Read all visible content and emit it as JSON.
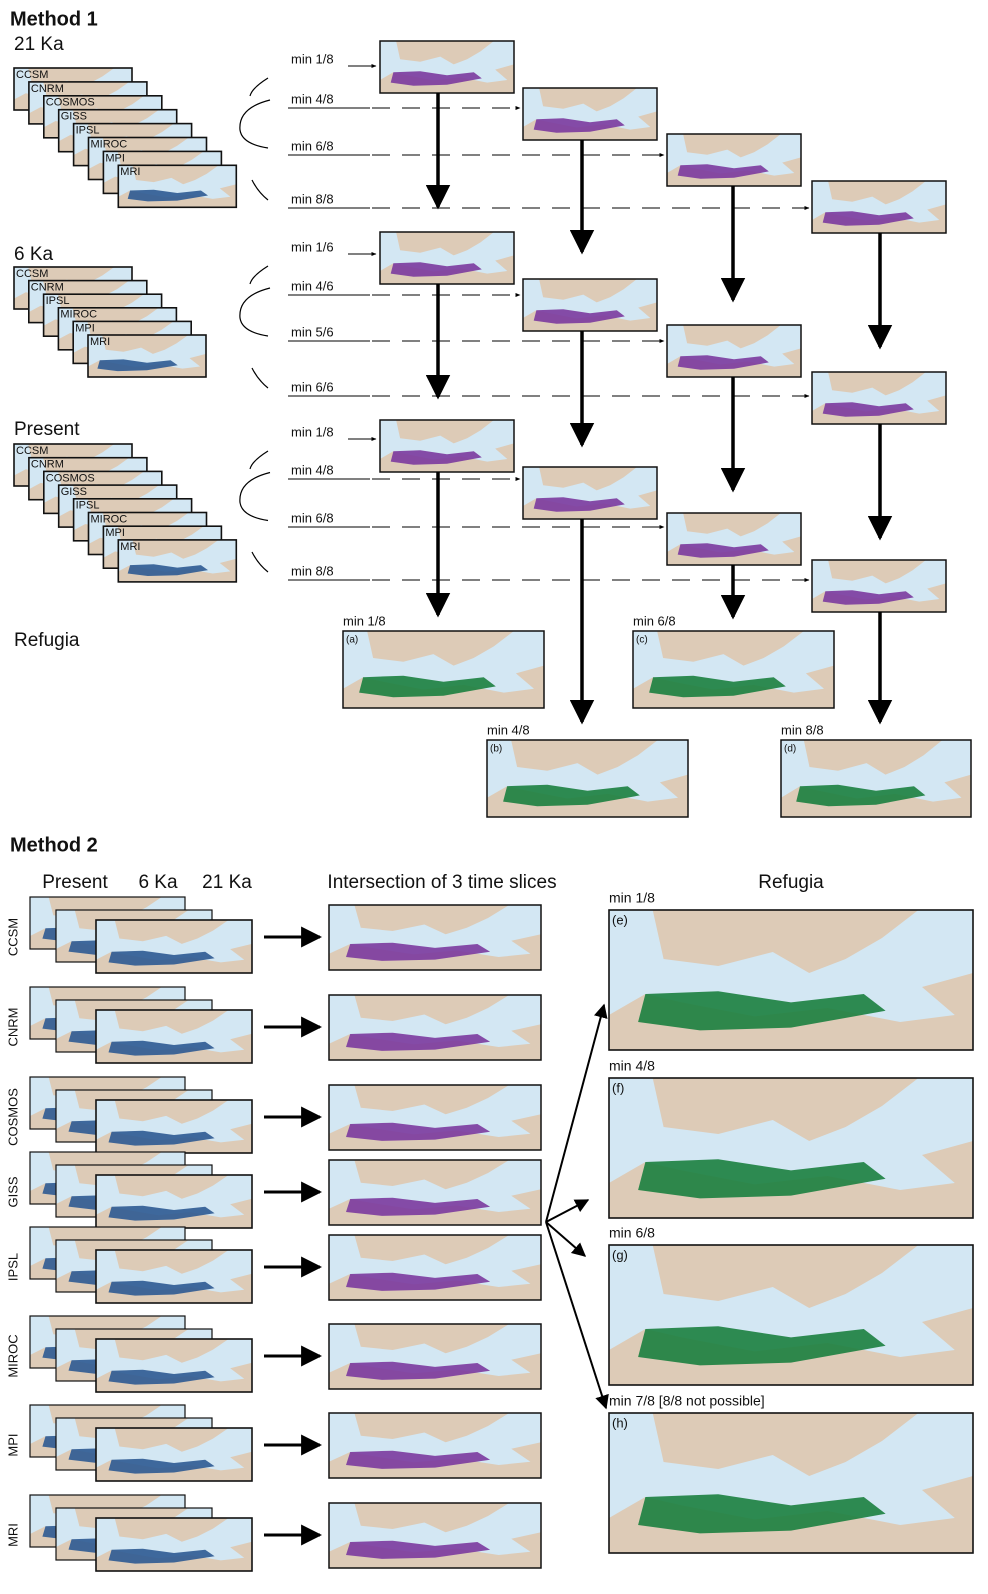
{
  "method1": {
    "title": "Method 1",
    "groups": [
      {
        "label": "21 Ka",
        "models": [
          "CCSM",
          "CNRM",
          "COSMOS",
          "GISS",
          "IPSL",
          "MIROC",
          "MPI",
          "MRI"
        ],
        "thresholds": [
          "min 1/8",
          "min 4/8",
          "min 6/8",
          "min 8/8"
        ]
      },
      {
        "label": "6 Ka",
        "models": [
          "CCSM",
          "CNRM",
          "IPSL",
          "MIROC",
          "MPI",
          "MRI"
        ],
        "thresholds": [
          "min 1/6",
          "min 4/6",
          "min 5/6",
          "min 6/6"
        ]
      },
      {
        "label": "Present",
        "models": [
          "CCSM",
          "CNRM",
          "COSMOS",
          "GISS",
          "IPSL",
          "MIROC",
          "MPI",
          "MRI"
        ],
        "thresholds": [
          "min 1/8",
          "min 4/8",
          "min 6/8",
          "min 8/8"
        ]
      }
    ],
    "refugia_label": "Refugia",
    "refugia": [
      {
        "threshold": "min 1/8",
        "panel": "(a)"
      },
      {
        "threshold": "min 4/8",
        "panel": "(b)"
      },
      {
        "threshold": "min 6/8",
        "panel": "(c)"
      },
      {
        "threshold": "min 8/8",
        "panel": "(d)"
      }
    ]
  },
  "method2": {
    "title": "Method 2",
    "columns": [
      "Present",
      "6 Ka",
      "21 Ka"
    ],
    "intersection_title": "Intersection of 3 time slices",
    "refugia_title": "Refugia",
    "models": [
      "CCSM",
      "CNRM",
      "COSMOS",
      "GISS",
      "IPSL",
      "MIROC",
      "MPI",
      "MRI"
    ],
    "refugia": [
      {
        "threshold": "min 1/8",
        "panel": "(e)"
      },
      {
        "threshold": "min 4/8",
        "panel": "(f)"
      },
      {
        "threshold": "min 6/8",
        "panel": "(g)"
      },
      {
        "threshold": "min 7/8 [8/8 not possible]",
        "panel": "(h)"
      }
    ]
  }
}
